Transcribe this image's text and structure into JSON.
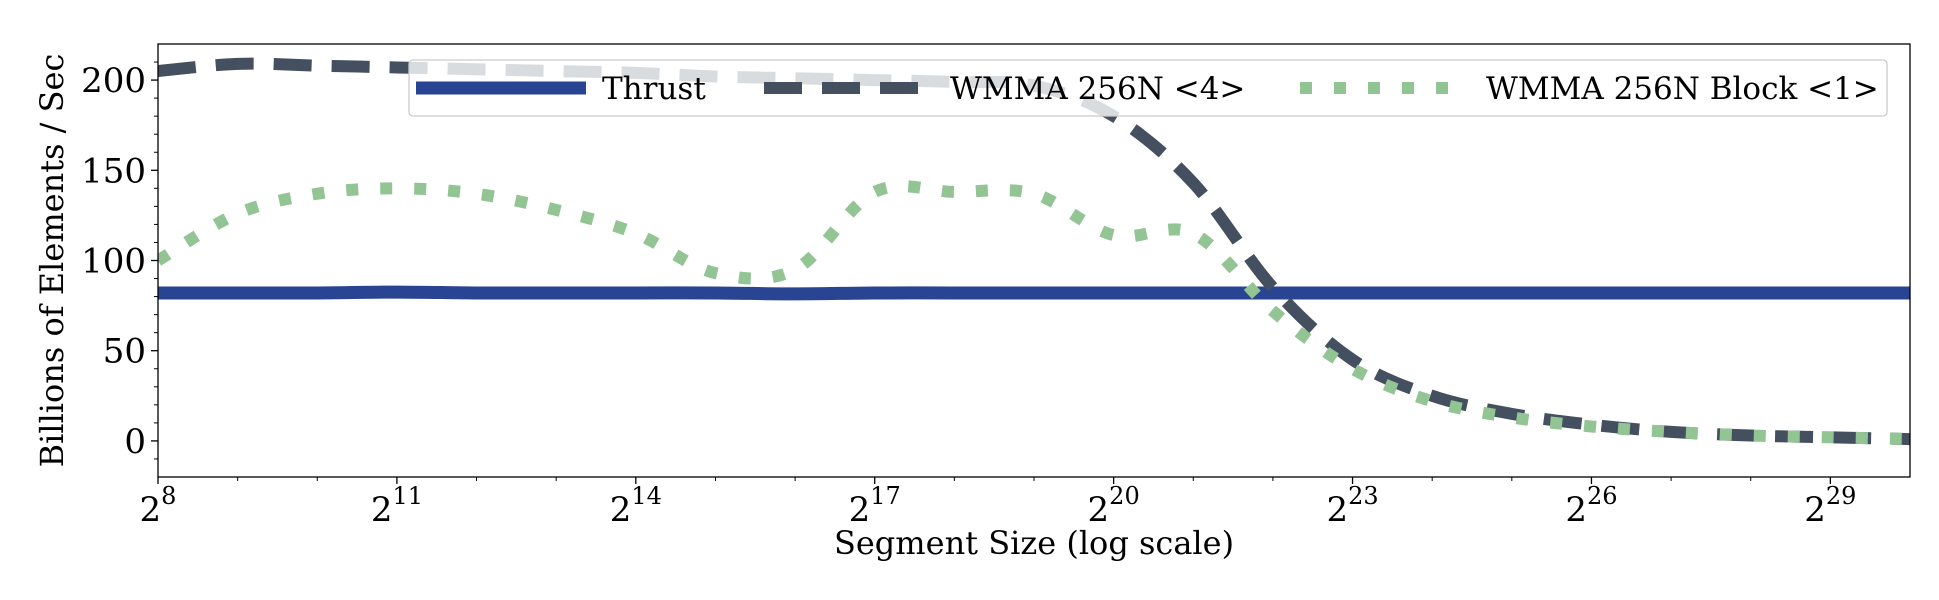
{
  "chart_data": {
    "type": "line",
    "xlabel": "Segment Size (log scale)",
    "ylabel": "Billions of Elements / Sec",
    "x_scale": "log2",
    "x_base_label": "2",
    "xlim_exp": [
      8,
      30
    ],
    "ylim": [
      -20,
      220
    ],
    "x_ticks_exp": [
      8,
      11,
      14,
      17,
      20,
      23,
      26,
      29
    ],
    "y_ticks": [
      0,
      50,
      100,
      150,
      200
    ],
    "grid": false,
    "legend_position": "top-right",
    "x_exp": [
      8,
      9,
      10,
      11,
      12,
      13,
      14,
      15,
      16,
      17,
      18,
      19,
      20,
      21,
      22,
      23,
      24,
      25,
      26,
      27,
      28,
      29,
      30
    ],
    "series": [
      {
        "name": "Thrust",
        "color": "#2a4494",
        "style": "solid",
        "values": [
          82,
          82,
          82,
          82.5,
          82,
          82,
          82,
          82,
          81.5,
          82,
          82,
          82,
          82,
          82,
          82,
          82,
          82,
          82,
          82,
          82,
          82,
          82,
          82
        ]
      },
      {
        "name": "WMMA 256N <4>",
        "color": "#44505f",
        "style": "dashed",
        "values": [
          205,
          209,
          208,
          207,
          206,
          205,
          204,
          202,
          201,
          200,
          199,
          197,
          180,
          143,
          85,
          45,
          25,
          15,
          9,
          5,
          3,
          2,
          1
        ]
      },
      {
        "name": "WMMA 256N Block <1>",
        "color": "#93c493",
        "style": "dotted",
        "values": [
          100,
          126,
          137,
          140,
          137,
          128,
          115,
          93,
          95,
          138,
          138,
          137,
          114,
          115,
          72,
          40,
          22,
          13,
          8,
          5,
          3,
          2,
          1
        ]
      }
    ]
  }
}
